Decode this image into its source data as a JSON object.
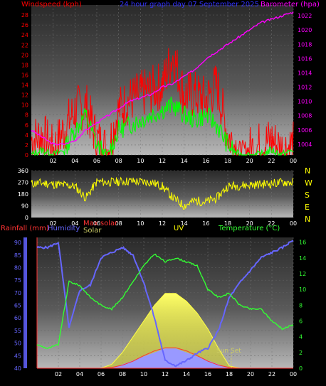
{
  "colors": {
    "wind": "#ff0000",
    "gust": "#00ff00",
    "baro": "#ff00ff",
    "title": "#3333ff",
    "dir": "#ffff00",
    "rain": "#ff3333",
    "humidity": "#6666ff",
    "maxsolar": "#ff3333",
    "solar": "#cccc66",
    "uv": "#ffff00",
    "temp": "#33ff33",
    "tick_white": "#ffffff"
  },
  "panel1": {
    "title": "24 hour graph day   07 September 2025",
    "wind_label": "Windspeed (kph)",
    "baro_label": "Barometer (hpa)"
  },
  "panel2": {
    "compass": [
      "N",
      "W",
      "S",
      "E",
      "N"
    ]
  },
  "panel3": {
    "rain_label": "Rainfall (mm)",
    "humidity_label": "Humidity",
    "maxsolar_label": "Max solar",
    "solar_label": "Solar",
    "uv_label": "UV",
    "temp_label": "Temperature (°C)",
    "sunset_label": "Sun Set"
  },
  "chart_data": [
    {
      "type": "line",
      "title": "24 hour graph day   07 September 2025",
      "x_ticks": [
        "02",
        "04",
        "06",
        "08",
        "10",
        "12",
        "14",
        "16",
        "18",
        "20",
        "22",
        "00"
      ],
      "y_left_label": "Windspeed (kph)",
      "y_left_ticks": [
        0,
        2,
        4,
        6,
        8,
        10,
        12,
        14,
        16,
        18,
        20,
        22,
        24,
        26,
        28
      ],
      "ylim_left": [
        0,
        30
      ],
      "y_right_label": "Barometer (hpa)",
      "y_right_ticks": [
        1004,
        1006,
        1008,
        1010,
        1012,
        1014,
        1016,
        1018,
        1020,
        1022
      ],
      "ylim_right": [
        1002.5,
        1023.5
      ],
      "x": [
        0,
        1,
        2,
        3,
        4,
        5,
        6,
        7,
        8,
        9,
        10,
        11,
        12,
        13,
        14,
        15,
        16,
        17,
        18,
        19,
        20,
        21,
        22,
        23,
        24
      ],
      "series": [
        {
          "name": "Windspeed",
          "axis": "left",
          "values": [
            3,
            4,
            1,
            5,
            9,
            10,
            3,
            1,
            9,
            11,
            12,
            13,
            14,
            20,
            12,
            12,
            11,
            14,
            4,
            1,
            1,
            2,
            3,
            1,
            2
          ]
        },
        {
          "name": "Gust",
          "axis": "left",
          "values": [
            0,
            1,
            0,
            1,
            5,
            8,
            2,
            0,
            5,
            6,
            7,
            8,
            9,
            10,
            8,
            7,
            8,
            6,
            2,
            0,
            0,
            0,
            1,
            0,
            1
          ]
        },
        {
          "name": "Barometer",
          "axis": "right",
          "values": [
            1006,
            1005,
            1004,
            1004,
            1004.5,
            1006,
            1007,
            1008,
            1009,
            1010,
            1010.5,
            1011,
            1012,
            1012.5,
            1013.5,
            1014.5,
            1016,
            1017,
            1018,
            1019,
            1020,
            1021,
            1021.5,
            1022,
            1022.5
          ]
        }
      ]
    },
    {
      "type": "scatter",
      "title": "",
      "x_ticks": [
        "02",
        "04",
        "06",
        "08",
        "10",
        "12",
        "14",
        "16",
        "18",
        "20",
        "22",
        "00"
      ],
      "y_ticks": [
        0,
        90,
        180,
        270,
        360
      ],
      "ylim": [
        0,
        360
      ],
      "compass": [
        "N",
        "W",
        "S",
        "E",
        "N"
      ],
      "x": [
        0,
        1,
        2,
        3,
        4,
        5,
        6,
        7,
        8,
        9,
        10,
        11,
        12,
        13,
        14,
        15,
        16,
        17,
        18,
        19,
        20,
        21,
        22,
        23,
        24
      ],
      "series": [
        {
          "name": "Wind direction",
          "values": [
            260,
            265,
            255,
            250,
            240,
            150,
            275,
            270,
            275,
            280,
            275,
            270,
            240,
            150,
            90,
            130,
            120,
            150,
            240,
            245,
            250,
            255,
            260,
            270,
            270
          ]
        }
      ]
    },
    {
      "type": "line",
      "title": "",
      "x_ticks": [
        "02",
        "04",
        "06",
        "08",
        "10",
        "12",
        "14",
        "16",
        "18",
        "20",
        "22",
        "00"
      ],
      "y_left_ticks": [
        40,
        45,
        50,
        55,
        60,
        65,
        70,
        75,
        80,
        85,
        90
      ],
      "ylim_left": [
        40,
        92
      ],
      "y_right_ticks": [
        0,
        2,
        4,
        6,
        8,
        10,
        12,
        14,
        16
      ],
      "ylim_right": [
        0,
        16.6
      ],
      "x": [
        0,
        1,
        2,
        3,
        4,
        5,
        6,
        7,
        8,
        9,
        10,
        11,
        12,
        13,
        14,
        15,
        16,
        17,
        18,
        19,
        20,
        21,
        22,
        23,
        24
      ],
      "series": [
        {
          "name": "Humidity",
          "axis": "left",
          "values": [
            88,
            88,
            90,
            56,
            71,
            73,
            84,
            86,
            88,
            85,
            74,
            60,
            43,
            41,
            43,
            46,
            48,
            55,
            68,
            74,
            79,
            84,
            86,
            88,
            91
          ]
        },
        {
          "name": "Temperature",
          "axis": "right",
          "values": [
            3,
            2.5,
            3,
            11,
            10.5,
            9,
            8,
            7.5,
            9,
            11,
            13,
            14.5,
            13.5,
            14,
            13.5,
            13,
            10,
            9,
            9.5,
            8,
            7.5,
            7.5,
            6,
            5,
            5.5
          ]
        },
        {
          "name": "Solar",
          "axis": "right",
          "values": [
            0,
            0,
            0,
            0,
            0,
            0,
            0,
            0.5,
            2,
            4,
            6,
            8,
            9.5,
            9.5,
            8.5,
            7,
            5,
            2.5,
            0.3,
            0,
            0,
            0,
            0,
            0,
            0
          ]
        },
        {
          "name": "Max solar",
          "axis": "right",
          "values": [
            0,
            0,
            0,
            0,
            0,
            0,
            0,
            0.1,
            0.4,
            0.9,
            1.6,
            2.2,
            2.6,
            2.6,
            2.2,
            1.6,
            0.9,
            0.4,
            0.1,
            0,
            0,
            0,
            0,
            0,
            0
          ]
        },
        {
          "name": "UV",
          "axis": "right",
          "values": [
            0,
            0,
            0,
            0,
            0,
            0,
            0,
            0,
            0.5,
            1,
            1.5,
            2,
            2.5,
            2.5,
            2,
            1.5,
            1,
            0.5,
            0,
            0,
            0,
            0,
            0,
            0,
            0
          ]
        }
      ]
    }
  ]
}
